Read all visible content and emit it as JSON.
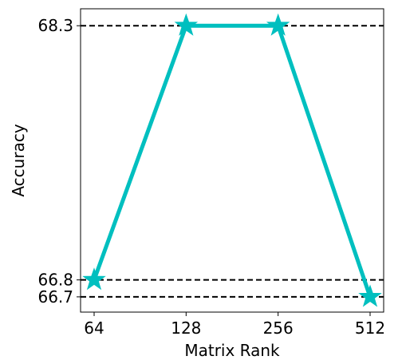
{
  "chart_data": {
    "type": "line",
    "title": "",
    "xlabel": "Matrix Rank",
    "ylabel": "Accuracy",
    "x_ticks": [
      "64",
      "128",
      "256",
      "512"
    ],
    "y_ticks": [
      "66.7",
      "66.8",
      "68.3"
    ],
    "ylim": [
      66.61,
      68.4
    ],
    "series": [
      {
        "values": [
          66.8,
          68.3,
          68.3,
          66.7
        ],
        "color": "#00BFBF",
        "marker": "star"
      }
    ],
    "reference_lines": [
      68.3,
      66.8,
      66.7
    ],
    "reference_line_style": "dashed",
    "grid": false
  }
}
